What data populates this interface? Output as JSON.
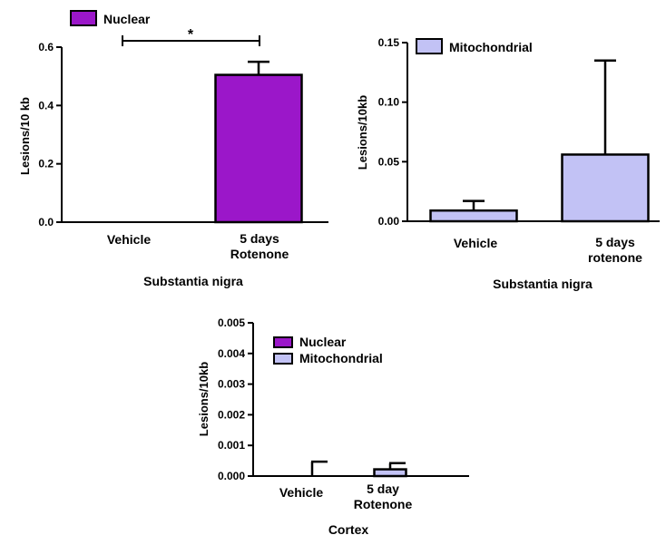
{
  "colors": {
    "nuclear": "#9b17c9",
    "mitochondrial": "#c2c2f5"
  },
  "chart_data": [
    {
      "type": "bar",
      "xlabel": "Substantia nigra",
      "ylabel": "Lesions/10 kb",
      "ylim": [
        0,
        0.6
      ],
      "yticks": [
        "0.0",
        "0.2",
        "0.4",
        "0.6"
      ],
      "categories": [
        [
          "Vehicle"
        ],
        [
          "5 days",
          "Rotenone"
        ]
      ],
      "legend": [
        "Nuclear"
      ],
      "series": [
        {
          "name": "Nuclear",
          "values": [
            0.0,
            0.505
          ],
          "errors": [
            0.0,
            0.045
          ]
        }
      ],
      "significance": "*"
    },
    {
      "type": "bar",
      "xlabel": "Substantia nigra",
      "ylabel": "Lesions/10kb",
      "ylim": [
        0,
        0.15
      ],
      "yticks": [
        "0.00",
        "0.05",
        "0.10",
        "0.15"
      ],
      "categories": [
        [
          "Vehicle"
        ],
        [
          "5 days",
          "rotenone"
        ]
      ],
      "legend": [
        "Mitochondrial"
      ],
      "series": [
        {
          "name": "Mitochondrial",
          "values": [
            0.009,
            0.056
          ],
          "errors": [
            0.008,
            0.079
          ]
        }
      ]
    },
    {
      "type": "bar",
      "xlabel": "Cortex",
      "ylabel": "Lesions/10kb",
      "ylim": [
        0,
        0.005
      ],
      "yticks": [
        "0.000",
        "0.001",
        "0.002",
        "0.003",
        "0.004",
        "0.005"
      ],
      "categories": [
        [
          "Vehicle"
        ],
        [
          "5 day",
          "Rotenone"
        ]
      ],
      "legend": [
        "Nuclear",
        "Mitochondrial"
      ],
      "series": [
        {
          "name": "Nuclear",
          "values": [
            0.0,
            0.0
          ],
          "errors": [
            0.0,
            0.0
          ]
        },
        {
          "name": "Mitochondrial",
          "values": [
            0.0,
            0.00022
          ],
          "errors": [
            0.00047,
            0.0002
          ]
        }
      ]
    }
  ]
}
